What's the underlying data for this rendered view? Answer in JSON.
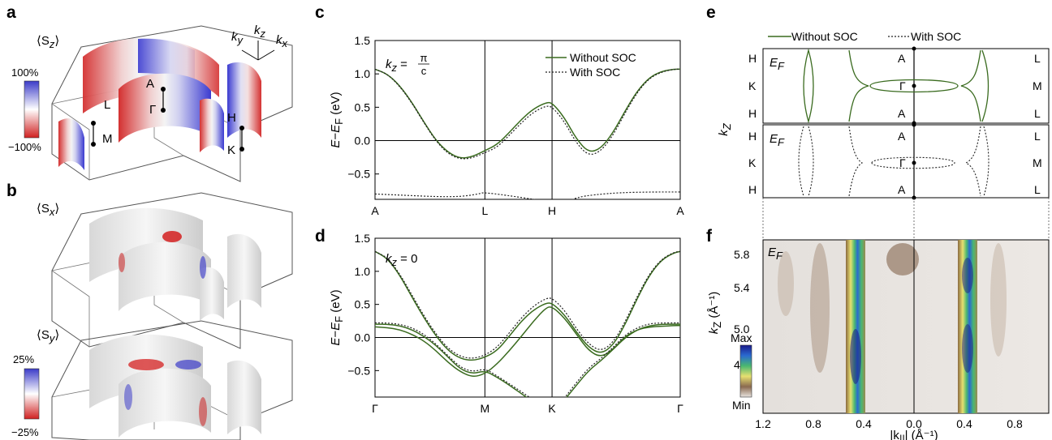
{
  "panels": {
    "a": {
      "letter": "a",
      "component": "⟨S",
      "component_sub": "z",
      "component_close": "⟩",
      "colorbar_max": "100%",
      "colorbar_min": "−100%",
      "colorbar_colors": [
        "#3b3bc8",
        "#ffffff",
        "#d02020"
      ],
      "axes": {
        "ky": "k",
        "ky_sub": "y",
        "kz": "k",
        "kz_sub": "z",
        "kx": "k",
        "kx_sub": "x"
      },
      "points": [
        "A",
        "Γ",
        "L",
        "M",
        "H",
        "K"
      ]
    },
    "b": {
      "letter": "b",
      "component_x": "⟨S",
      "component_x_sub": "x",
      "component_y": "⟨S",
      "component_y_sub": "y",
      "component_close": "⟩",
      "colorbar_max": "25%",
      "colorbar_min": "−25%"
    },
    "c": {
      "letter": "c"
    },
    "d": {
      "letter": "d"
    },
    "e": {
      "letter": "e",
      "legend_without": "Without SOC",
      "legend_with": "With SOC",
      "ylabel": "k",
      "ylabel_sub": "Z",
      "ef": "E",
      "ef_sub": "F",
      "left_labels": [
        "H",
        "K",
        "H"
      ],
      "center_labels": [
        "A",
        "Γ",
        "A"
      ],
      "right_labels": [
        "L",
        "M",
        "L"
      ],
      "line_color": "#3a6b1f"
    },
    "f": {
      "letter": "f",
      "ef": "E",
      "ef_sub": "F",
      "ylabel": "k",
      "ylabel_sub": "Z",
      "ylabel_unit": " (Å⁻¹)",
      "xlabel": "|k",
      "xlabel_sub": "||",
      "xlabel_unit": "| (Å⁻¹)",
      "yticks": [
        "5.8",
        "5.4",
        "5.0",
        "4.6"
      ],
      "xticks": [
        "1.2",
        "0.8",
        "0.4",
        "0.0",
        "0.4",
        "0.8"
      ],
      "cbar_max": "Max",
      "cbar_min": "Min"
    }
  },
  "chart_data": [
    {
      "type": "line",
      "panel": "c",
      "annotation": "k_z = π/c",
      "annotation_prefix": "k",
      "annotation_sub": "z",
      "annotation_eq": " = ",
      "annotation_num": "π",
      "annotation_den": "c",
      "ylabel": "E−E_F (eV)",
      "ylabel_parts": {
        "e": "E",
        "minus": "−",
        "ef": "E",
        "ef_sub": "F",
        "unit": " (eV)"
      },
      "ylim": [
        -0.88,
        1.5
      ],
      "yticks": [
        1.5,
        1.0,
        0.5,
        0.0,
        -0.5
      ],
      "ytick_labels": [
        "1.5",
        "1.0",
        "0.5",
        "0.0",
        "−0.5"
      ],
      "x_labels": [
        "A",
        "L",
        "H",
        "A"
      ],
      "x_positions": [
        0,
        0.36,
        0.58,
        1.0
      ],
      "legend": "top-right",
      "series": [
        {
          "name": "Without SOC",
          "style": "solid",
          "color": "#3a6b1f",
          "x": [
            0,
            0.04,
            0.08,
            0.12,
            0.16,
            0.2,
            0.24,
            0.28,
            0.32,
            0.36,
            0.4,
            0.44,
            0.48,
            0.52,
            0.56,
            0.58,
            0.62,
            0.66,
            0.7,
            0.74,
            0.78,
            0.82,
            0.86,
            0.9,
            0.94,
            0.98,
            1.0
          ],
          "y": [
            1.07,
            1.0,
            0.83,
            0.58,
            0.28,
            0.0,
            -0.18,
            -0.27,
            -0.24,
            -0.15,
            -0.06,
            0.12,
            0.32,
            0.48,
            0.57,
            0.57,
            0.35,
            0.02,
            -0.18,
            -0.12,
            0.12,
            0.45,
            0.75,
            0.95,
            1.04,
            1.07,
            1.07
          ]
        },
        {
          "name": "With SOC",
          "style": "dotted",
          "color": "#222222",
          "x": [
            0,
            0.04,
            0.08,
            0.12,
            0.16,
            0.2,
            0.24,
            0.28,
            0.32,
            0.36,
            0.4,
            0.44,
            0.48,
            0.52,
            0.56,
            0.58,
            0.62,
            0.66,
            0.7,
            0.74,
            0.78,
            0.82,
            0.86,
            0.9,
            0.94,
            0.98,
            1.0
          ],
          "y": [
            1.07,
            1.0,
            0.82,
            0.57,
            0.27,
            -0.01,
            -0.2,
            -0.28,
            -0.26,
            -0.18,
            -0.1,
            0.08,
            0.27,
            0.43,
            0.52,
            0.51,
            0.29,
            -0.04,
            -0.23,
            -0.16,
            0.08,
            0.42,
            0.73,
            0.94,
            1.03,
            1.07,
            1.07
          ]
        },
        {
          "name": "",
          "style": "dotted",
          "color": "#222222",
          "x": [
            0.0,
            0.1,
            0.2,
            0.28,
            0.34,
            0.36,
            0.62,
            0.66,
            0.72,
            0.8,
            0.9,
            1.0
          ],
          "y": [
            -0.8,
            -0.82,
            -0.84,
            -0.84,
            -0.8,
            -0.77,
            -0.95,
            -0.85,
            -0.81,
            -0.78,
            -0.77,
            -0.77
          ]
        }
      ]
    },
    {
      "type": "line",
      "panel": "d",
      "annotation": "k_z = 0",
      "annotation_prefix": "k",
      "annotation_sub": "z",
      "annotation_eq": " = 0",
      "ylabel": "E−E_F (eV)",
      "ylabel_parts": {
        "e": "E",
        "minus": "−",
        "ef": "E",
        "ef_sub": "F",
        "unit": " (eV)"
      },
      "ylim": [
        -0.9,
        1.5
      ],
      "yticks": [
        1.5,
        1.0,
        0.5,
        0.0,
        -0.5
      ],
      "ytick_labels": [
        "1.5",
        "1.0",
        "0.5",
        "0.0",
        "−0.5"
      ],
      "x_labels": [
        "Γ",
        "M",
        "K",
        "Γ"
      ],
      "x_positions": [
        0,
        0.36,
        0.58,
        1.0
      ],
      "series": [
        {
          "name": "Without SOC",
          "style": "solid",
          "color": "#3a6b1f",
          "x": [
            0,
            0.04,
            0.08,
            0.12,
            0.16,
            0.2,
            0.24,
            0.28,
            0.32,
            0.36,
            0.4,
            0.44,
            0.48,
            0.52,
            0.56,
            0.58,
            0.62,
            0.66,
            0.7,
            0.74,
            0.78,
            0.82,
            0.86,
            0.9,
            0.94,
            0.98,
            1.0
          ],
          "y": [
            1.3,
            1.2,
            0.95,
            0.62,
            0.3,
            0.02,
            -0.2,
            -0.32,
            -0.35,
            -0.3,
            -0.2,
            0.02,
            0.25,
            0.42,
            0.52,
            0.52,
            0.35,
            0.08,
            -0.15,
            -0.25,
            -0.12,
            0.2,
            0.6,
            0.95,
            1.18,
            1.28,
            1.3
          ]
        },
        {
          "name": "",
          "style": "solid",
          "color": "#3a6b1f",
          "x": [
            0,
            0.04,
            0.08,
            0.12,
            0.16,
            0.2,
            0.24,
            0.28,
            0.32,
            0.36,
            0.4,
            0.44,
            0.48,
            0.52,
            0.56,
            0.58,
            0.62,
            0.66,
            0.7,
            0.74,
            0.78,
            0.82,
            0.86,
            0.9,
            0.94,
            0.98,
            1.0
          ],
          "y": [
            0.2,
            0.2,
            0.18,
            0.12,
            0.02,
            -0.12,
            -0.3,
            -0.48,
            -0.55,
            -0.5,
            -0.6,
            -0.72,
            -0.85,
            -0.98,
            -1.1,
            -1.15,
            -0.95,
            -0.72,
            -0.5,
            -0.35,
            -0.18,
            0.0,
            0.12,
            0.18,
            0.2,
            0.2,
            0.2
          ]
        },
        {
          "name": "",
          "style": "solid",
          "color": "#3a6b1f",
          "x": [
            0,
            0.04,
            0.08,
            0.12,
            0.16,
            0.2,
            0.24,
            0.28,
            0.32,
            0.36,
            0.4,
            0.44,
            0.48,
            0.52,
            0.56,
            0.58,
            0.62,
            0.66,
            0.7,
            0.74,
            0.78,
            0.82,
            0.86,
            0.9,
            0.94,
            0.98,
            1.0
          ],
          "y": [
            0.16,
            0.15,
            0.12,
            0.05,
            -0.05,
            -0.2,
            -0.38,
            -0.52,
            -0.6,
            -0.55,
            -0.4,
            -0.2,
            0.02,
            0.25,
            0.45,
            0.47,
            0.3,
            0.05,
            -0.2,
            -0.3,
            -0.18,
            0.02,
            0.12,
            0.16,
            0.17,
            0.18,
            0.18
          ]
        },
        {
          "name": "With SOC",
          "style": "dotted",
          "color": "#222222",
          "x": [
            0,
            0.04,
            0.08,
            0.12,
            0.16,
            0.2,
            0.24,
            0.28,
            0.32,
            0.36,
            0.4,
            0.44,
            0.48,
            0.52,
            0.56,
            0.58,
            0.62,
            0.66,
            0.7,
            0.74,
            0.78,
            0.82,
            0.86,
            0.9,
            0.94,
            0.98,
            1.0
          ],
          "y": [
            1.3,
            1.21,
            0.97,
            0.65,
            0.33,
            0.05,
            -0.17,
            -0.29,
            -0.32,
            -0.27,
            -0.15,
            0.07,
            0.3,
            0.48,
            0.59,
            0.6,
            0.42,
            0.13,
            -0.1,
            -0.21,
            -0.08,
            0.24,
            0.63,
            0.97,
            1.19,
            1.29,
            1.3
          ]
        },
        {
          "name": "",
          "style": "dotted",
          "color": "#222222",
          "x": [
            0,
            0.04,
            0.08,
            0.12,
            0.16,
            0.2,
            0.24,
            0.28,
            0.32,
            0.36,
            0.4,
            0.44,
            0.48,
            0.52,
            0.56,
            0.58,
            0.62,
            0.66,
            0.7,
            0.74,
            0.78,
            0.82,
            0.86,
            0.9,
            0.94,
            0.98,
            1.0
          ],
          "y": [
            0.22,
            0.22,
            0.2,
            0.15,
            0.05,
            -0.1,
            -0.28,
            -0.45,
            -0.52,
            -0.47,
            -0.58,
            -0.7,
            -0.82,
            -0.95,
            -1.07,
            -1.12,
            -0.92,
            -0.68,
            -0.46,
            -0.32,
            -0.15,
            0.04,
            0.15,
            0.21,
            0.22,
            0.22,
            0.22
          ]
        }
      ]
    }
  ]
}
